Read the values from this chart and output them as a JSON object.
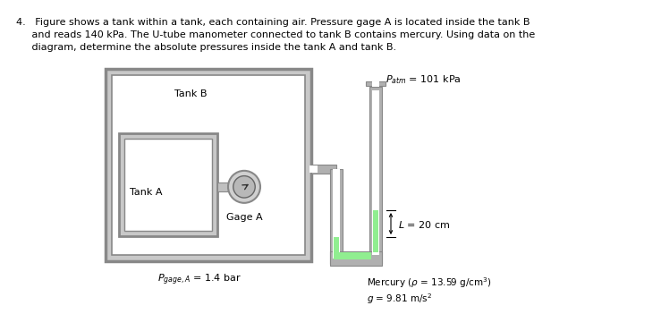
{
  "bg_color": "#ffffff",
  "text_color": "#000000",
  "gray_dark": "#888888",
  "gray_mid": "#aaaaaa",
  "gray_light": "#d8d8d8",
  "mercury_color": "#90ee90",
  "white": "#ffffff",
  "line1": "4.   Figure shows a tank within a tank, each containing air. Pressure gage A is located inside the tank B",
  "line2": "     and reads 140 kPa. The U-tube manometer connected to tank B contains mercury. Using data on the",
  "line3": "     diagram, determine the absolute pressures inside the tank A and tank B.",
  "label_tank_b": "Tank B",
  "label_tank_a": "Tank A",
  "label_gage_a": "Gage A",
  "label_patm": "$P_{atm}$ = 101 kPa",
  "label_L": "$L$ = 20 cm",
  "label_mercury": "Mercury ($\\rho$ = 13.59 g/cm$^3$)\n$g$ = 9.81 m/s$^2$",
  "label_pgage": "$P_{gage, A}$ = 1.4 bar",
  "fontsize_text": 8.0,
  "fontsize_label": 8.0
}
